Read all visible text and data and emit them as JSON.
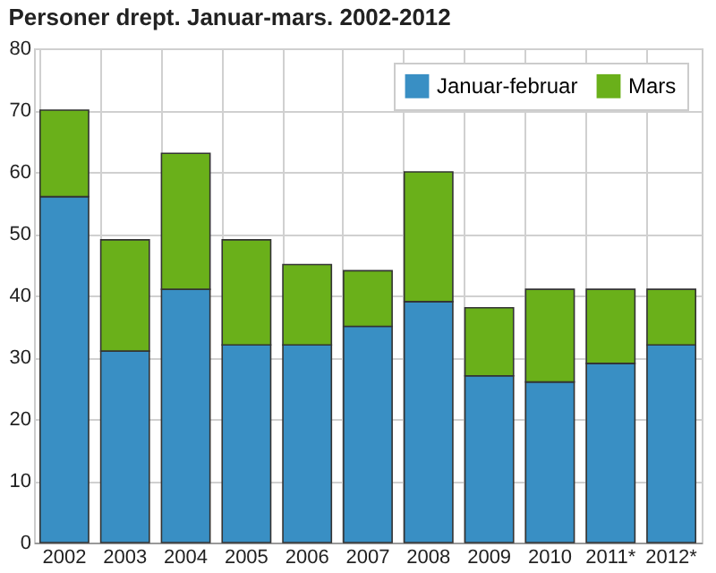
{
  "chart_data": {
    "type": "bar",
    "title": "Personer drept. Januar-mars. 2002-2012",
    "stacked": true,
    "categories": [
      "2002",
      "2003",
      "2004",
      "2005",
      "2006",
      "2007",
      "2008",
      "2009",
      "2010",
      "2011*",
      "2012*"
    ],
    "series": [
      {
        "name": "Januar-februar",
        "color": "#398fc4",
        "values": [
          56,
          31,
          41,
          32,
          32,
          35,
          39,
          27,
          26,
          29,
          32
        ]
      },
      {
        "name": "Mars",
        "color": "#6ab01a",
        "values": [
          14,
          18,
          22,
          17,
          13,
          9,
          21,
          11,
          15,
          12,
          9
        ]
      }
    ],
    "ylim": [
      0,
      80
    ],
    "yticks": [
      0,
      10,
      20,
      30,
      40,
      50,
      60,
      70,
      80
    ],
    "grid": true,
    "legend": "top right"
  }
}
